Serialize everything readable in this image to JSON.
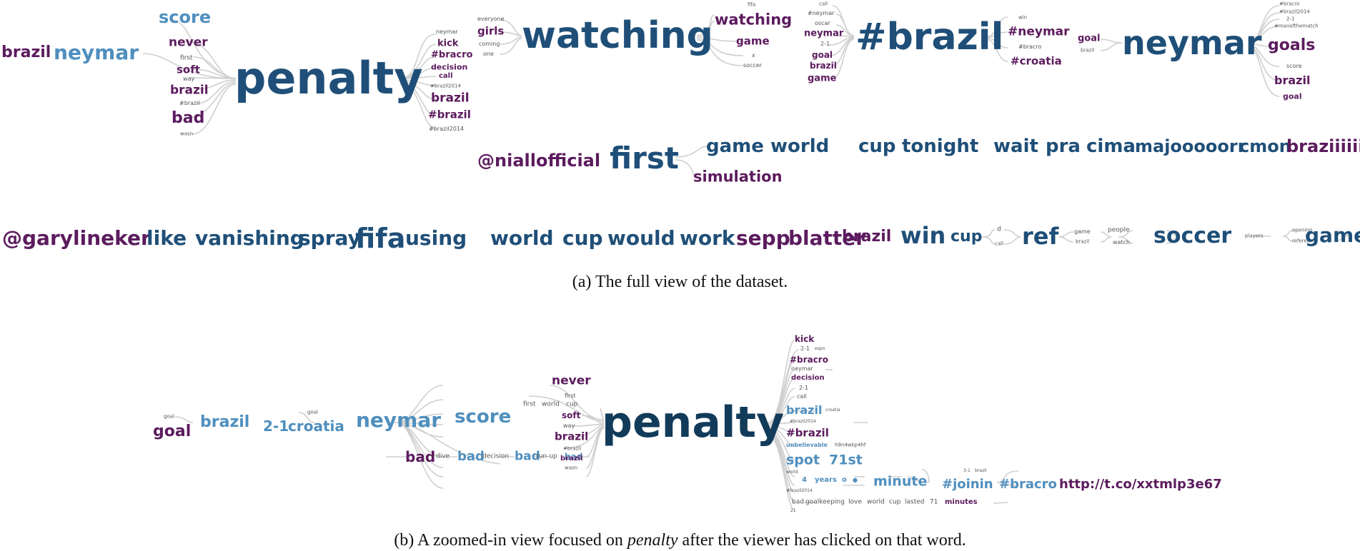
{
  "captions": {
    "a": "(a) The full view of the dataset.",
    "b_prefix": "(b) A zoomed-in view focused on",
    "b_focus": "penalty",
    "b_suffix": "after the viewer has clicked on that word."
  },
  "panel_a": {
    "penalty_cluster": [
      "brazil",
      "neymar",
      "score",
      "never",
      "first",
      "soft",
      "way",
      "brazil",
      "#brazil",
      "bad",
      "wasn",
      "penalty",
      "neymar",
      "kick",
      "#bracro",
      "decision",
      "call",
      "#brazil2014",
      "brazil",
      "#brazil",
      "#brazil2014"
    ],
    "watching_cluster": [
      "everyone",
      "girls",
      "coming",
      "one",
      "watching",
      "fifa",
      "watching",
      "game",
      "x",
      "soccer"
    ],
    "brazil_cluster": [
      "call",
      "#neymar",
      "oscar",
      "neymar",
      "2-1",
      "goal",
      "brazil",
      "game",
      "#brazil",
      "win",
      "#neymar",
      "#bracro",
      "#croatia"
    ],
    "neymar_cluster": [
      "goal",
      "brazil",
      "neymar",
      "#bracro",
      "#brazil2014",
      "2-1",
      "#manofthematch",
      "goals",
      "score",
      "brazil",
      "goal"
    ],
    "first_cluster": [
      "@niallofficial",
      "first",
      "game",
      "world",
      "cup",
      "tonight",
      "wait",
      "pra",
      "cima",
      "majooooorr",
      "cmon",
      "braziiiiiiiii",
      "simulation"
    ],
    "fifa_row": [
      "@garylineker",
      "like",
      "vanishing",
      "spray",
      "fifa",
      "using",
      "world",
      "cup",
      "would",
      "work",
      "sepp",
      "blatter"
    ],
    "win_row": [
      "brazil",
      "win",
      "cup",
      "d",
      "call",
      "ref",
      "game",
      "brazil",
      "people",
      "watch",
      "soccer",
      "players",
      "opening",
      "referee",
      "game"
    ]
  },
  "panel_b": {
    "left_chain": [
      "goal",
      "goal",
      "brazil",
      "2-1",
      "croatia",
      "goal",
      "neymar",
      "score",
      "bad",
      "dive",
      "bad",
      "decision",
      "bad",
      "run-up",
      "bad"
    ],
    "middle": [
      "never",
      "first",
      "first",
      "world",
      "cup",
      "soft",
      "way",
      "brazil",
      "#brazil",
      "brazil",
      "wasn",
      "penalty"
    ],
    "right_tree": [
      "kick",
      "2-1",
      "espn",
      "#bracro",
      "neymar",
      "decision",
      "2-1",
      "call",
      "brazil",
      "croatia",
      "#brazil2014",
      "#brazil",
      "unbelievable",
      "h9n4wkp4hf",
      "spot",
      "71st",
      "world",
      "4",
      "years",
      "o",
      "●",
      "#brazil2014",
      "minute",
      "3-1",
      "brazil",
      "#joinin",
      "#bracro",
      "http://t.co/xxtmlp3e67",
      "bad",
      "goalkeeping",
      "love",
      "world",
      "cup",
      "lasted",
      "71",
      "minutes",
      "21"
    ]
  },
  "colors": {
    "dark": "#123b5a",
    "mid": "#1f4f78",
    "light": "#4f8fbe",
    "purple": "#5c1b5e",
    "link": "#cfcfcf"
  }
}
